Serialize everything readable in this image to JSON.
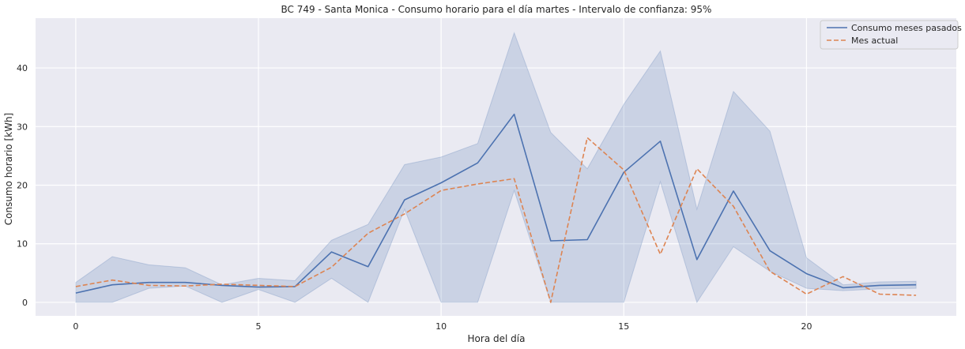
{
  "chart_data": {
    "type": "line",
    "title": "BC 749 - Santa Monica - Consumo horario para el día martes - Intervalo de confianza: 95%",
    "xlabel": "Hora del día",
    "ylabel": "Consumo horario [kWh]",
    "xlim": [
      -1.1,
      24.1
    ],
    "ylim": [
      -2.3,
      48.5
    ],
    "x_ticks": [
      0,
      5,
      10,
      15,
      20
    ],
    "y_ticks": [
      0,
      10,
      20,
      30,
      40
    ],
    "grid": true,
    "legend_position": "top-right",
    "x": [
      0,
      1,
      2,
      3,
      4,
      5,
      6,
      7,
      8,
      9,
      10,
      11,
      12,
      13,
      14,
      15,
      16,
      17,
      18,
      19,
      20,
      21,
      22,
      23
    ],
    "series": [
      {
        "name": "Consumo meses pasados",
        "color": "#4c72b0",
        "style": "solid",
        "values": [
          1.6,
          3.0,
          3.4,
          3.4,
          2.9,
          2.6,
          2.7,
          8.6,
          6.1,
          17.5,
          20.4,
          23.8,
          32.1,
          10.5,
          10.7,
          22.2,
          27.5,
          7.3,
          19.0,
          8.8,
          4.9,
          2.5,
          2.9,
          3.0
        ],
        "ci_lower": [
          0.0,
          0.0,
          2.4,
          2.8,
          0.0,
          2.2,
          0.0,
          4.1,
          0.0,
          15.9,
          0.0,
          0.0,
          19.1,
          0.0,
          0.0,
          0.0,
          20.6,
          0.0,
          9.5,
          5.3,
          2.4,
          2.0,
          2.3,
          2.4
        ],
        "ci_upper": [
          3.4,
          7.8,
          6.4,
          5.9,
          3.0,
          4.1,
          3.7,
          10.6,
          13.3,
          23.5,
          24.8,
          27.1,
          46.0,
          29.0,
          22.8,
          33.8,
          42.9,
          15.9,
          36.0,
          29.2,
          7.6,
          3.0,
          3.5,
          3.6
        ]
      },
      {
        "name": "Mes actual",
        "color": "#dd8452",
        "style": "dashed",
        "values": [
          2.7,
          3.8,
          2.9,
          2.8,
          3.1,
          2.9,
          2.7,
          6.0,
          11.8,
          15.1,
          19.1,
          20.2,
          21.1,
          0.0,
          28.1,
          22.6,
          8.2,
          22.8,
          16.4,
          5.3,
          1.4,
          4.4,
          1.4,
          1.2
        ]
      }
    ],
    "colors": {
      "background": "#eaeaf2",
      "grid": "#ffffff",
      "ci_fill": "#4c72b0"
    }
  }
}
